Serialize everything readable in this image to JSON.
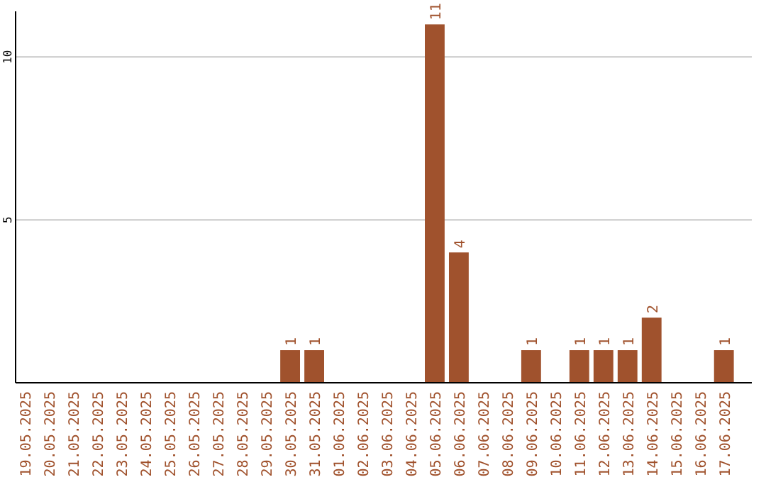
{
  "chart_data": {
    "type": "bar",
    "categories": [
      "19.05.2025",
      "20.05.2025",
      "21.05.2025",
      "22.05.2025",
      "23.05.2025",
      "24.05.2025",
      "25.05.2025",
      "26.05.2025",
      "27.05.2025",
      "28.05.2025",
      "29.05.2025",
      "30.05.2025",
      "31.05.2025",
      "01.06.2025",
      "02.06.2025",
      "03.06.2025",
      "04.06.2025",
      "05.06.2025",
      "06.06.2025",
      "07.06.2025",
      "08.06.2025",
      "09.06.2025",
      "10.06.2025",
      "11.06.2025",
      "12.06.2025",
      "13.06.2025",
      "14.06.2025",
      "15.06.2025",
      "16.06.2025",
      "17.06.2025"
    ],
    "values": [
      0,
      0,
      0,
      0,
      0,
      0,
      0,
      0,
      0,
      0,
      0,
      1,
      1,
      0,
      0,
      0,
      0,
      11,
      4,
      0,
      0,
      1,
      0,
      1,
      1,
      1,
      2,
      0,
      0,
      1
    ],
    "value_labels": [
      null,
      null,
      null,
      null,
      null,
      null,
      null,
      null,
      null,
      null,
      null,
      "1",
      "1",
      null,
      null,
      null,
      null,
      "11",
      "4",
      null,
      null,
      "1",
      null,
      "1",
      "1",
      "1",
      "2",
      null,
      null,
      "1"
    ],
    "color": "#a0522d",
    "ylim": [
      0,
      11.4
    ],
    "yticks": [
      5,
      10
    ],
    "grid": "y"
  }
}
